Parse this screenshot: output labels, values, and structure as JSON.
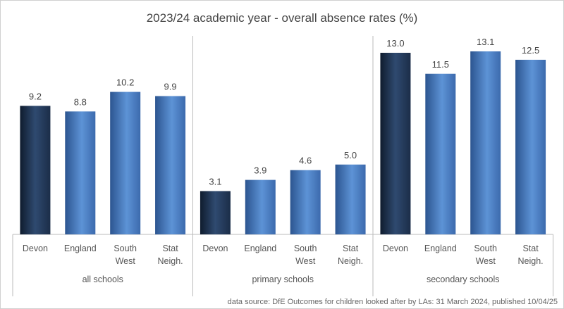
{
  "chart_data": {
    "type": "bar",
    "title": "2023/24 academic year - overall absence rates (%)",
    "groups": [
      {
        "label": "all schools",
        "categories": [
          "Devon",
          "England",
          "South West",
          "Stat Neigh."
        ],
        "values": [
          9.2,
          8.8,
          10.2,
          9.9
        ]
      },
      {
        "label": "primary schools",
        "categories": [
          "Devon",
          "England",
          "South West",
          "Stat Neigh."
        ],
        "values": [
          3.1,
          3.9,
          4.6,
          5.0
        ]
      },
      {
        "label": "secondary schools",
        "categories": [
          "Devon",
          "England",
          "South West",
          "Stat Neigh."
        ],
        "values": [
          13.0,
          11.5,
          13.1,
          12.5
        ]
      }
    ],
    "category_lines": [
      [
        "Devon"
      ],
      [
        "England"
      ],
      [
        "South",
        "West"
      ],
      [
        "Stat",
        "Neigh."
      ]
    ],
    "ylim": [
      0,
      16.7
    ],
    "grid": false,
    "legend": "none",
    "colors": {
      "devon": "#1f3350",
      "others": "#4a7fc4"
    },
    "source": "data source: DfE Outcomes for children looked after by LAs: 31 March 2024, published 10/04/25"
  }
}
